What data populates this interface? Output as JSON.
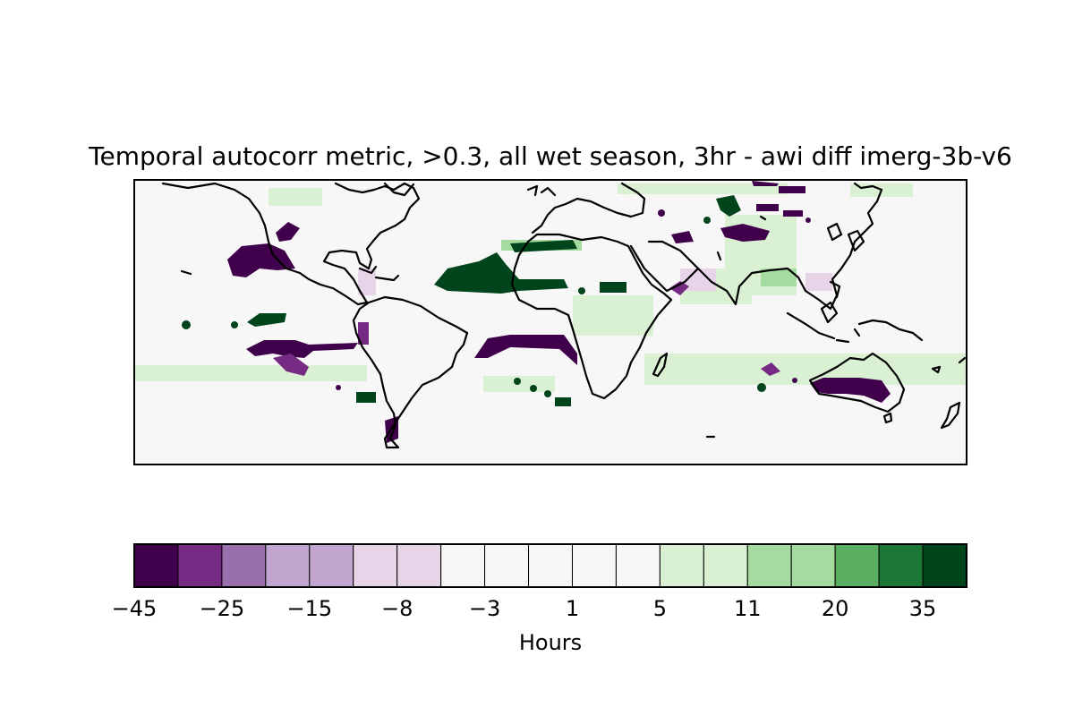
{
  "title": "Temporal autocorr metric, >0.3, all wet season, 3hr - awi diff imerg-3b-v6",
  "colorbar": {
    "label": "Hours",
    "ticks": [
      "−45",
      "−25",
      "−15",
      "−8",
      "−3",
      "1",
      "5",
      "11",
      "20",
      "35"
    ],
    "colors": [
      "#40004b",
      "#762a83",
      "#9970ab",
      "#c2a5cf",
      "#c2a5cf",
      "#e7d4e8",
      "#e7d4e8",
      "#f7f7f7",
      "#f7f7f7",
      "#f7f7f7",
      "#f7f7f7",
      "#f7f7f7",
      "#d9f0d3",
      "#d9f0d3",
      "#a6dba0",
      "#a6dba0",
      "#5aae61",
      "#1b7837",
      "#00441b"
    ]
  },
  "map": {
    "background": "#f7f7f7",
    "lon_range": [
      -180,
      180
    ],
    "lat_range": [
      -60,
      60
    ],
    "coastline_color": "#000000"
  }
}
